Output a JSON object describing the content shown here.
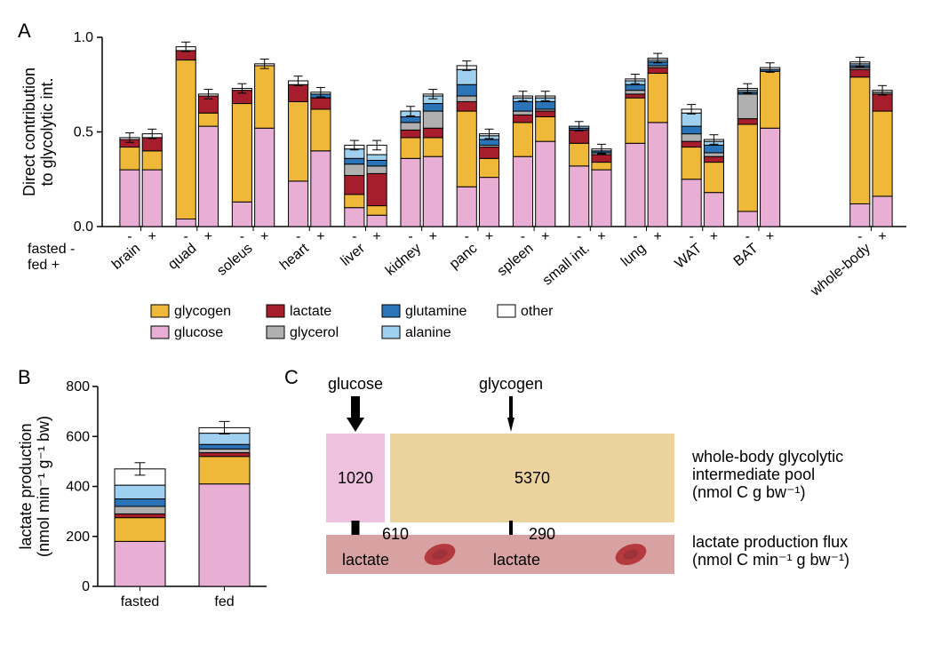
{
  "colors": {
    "glycogen": "#f0b838",
    "glucose": "#e8aed4",
    "lactate": "#a61e2c",
    "glycerol": "#b0b0b0",
    "glutamine": "#2b74b8",
    "alanine": "#9fd0ef",
    "other": "#ffffff",
    "axis": "#000000",
    "text": "#000000",
    "poolGlucose": "#eec2de",
    "poolGlycogen": "#ecd29d",
    "blood": "#d7a2a1",
    "bloodCell": "#b43a3f"
  },
  "legend": {
    "order": [
      "glycogen",
      "lactate",
      "glutamine",
      "other",
      "glucose",
      "glycerol",
      "alanine"
    ],
    "labels": {
      "glycogen": "glycogen",
      "lactate": "lactate",
      "glutamine": "glutamine",
      "other": "other",
      "glucose": "glucose",
      "glycerol": "glycerol",
      "alanine": "alanine"
    }
  },
  "stackOrder": [
    "glucose",
    "glycogen",
    "lactate",
    "glycerol",
    "glutamine",
    "alanine",
    "other"
  ],
  "panelA": {
    "label": "A",
    "ylabel": "Direct contribution\nto glycolytic int.",
    "ylim": [
      0,
      1.0
    ],
    "yticks": [
      0.0,
      0.5,
      1.0
    ],
    "fasted_fed_label": "fasted -\nfed +",
    "label_fontsize": 18,
    "tick_fontsize": 16,
    "tissues": [
      "brain",
      "quad",
      "soleus",
      "heart",
      "liver",
      "kidney",
      "panc",
      "spleen",
      "small int.",
      "lung",
      "WAT",
      "BAT",
      "whole-body"
    ],
    "data": {
      "brain": {
        "fasted": {
          "glucose": 0.3,
          "glycogen": 0.12,
          "lactate": 0.04,
          "glycerol": 0.0,
          "glutamine": 0.0,
          "alanine": 0.0,
          "other": 0.01
        },
        "fed": {
          "glucose": 0.3,
          "glycogen": 0.1,
          "lactate": 0.07,
          "glycerol": 0.0,
          "glutamine": 0.0,
          "alanine": 0.0,
          "other": 0.02
        }
      },
      "quad": {
        "fasted": {
          "glucose": 0.04,
          "glycogen": 0.84,
          "lactate": 0.05,
          "glycerol": 0.0,
          "glutamine": 0.0,
          "alanine": 0.0,
          "other": 0.02
        },
        "fed": {
          "glucose": 0.53,
          "glycogen": 0.07,
          "lactate": 0.09,
          "glycerol": 0.0,
          "glutamine": 0.0,
          "alanine": 0.0,
          "other": 0.01
        }
      },
      "soleus": {
        "fasted": {
          "glucose": 0.13,
          "glycogen": 0.52,
          "lactate": 0.07,
          "glycerol": 0.0,
          "glutamine": 0.0,
          "alanine": 0.0,
          "other": 0.01
        },
        "fed": {
          "glucose": 0.52,
          "glycogen": 0.33,
          "lactate": 0.0,
          "glycerol": 0.0,
          "glutamine": 0.0,
          "alanine": 0.0,
          "other": 0.01
        }
      },
      "heart": {
        "fasted": {
          "glucose": 0.24,
          "glycogen": 0.42,
          "lactate": 0.09,
          "glycerol": 0.0,
          "glutamine": 0.0,
          "alanine": 0.0,
          "other": 0.02
        },
        "fed": {
          "glucose": 0.4,
          "glycogen": 0.22,
          "lactate": 0.06,
          "glycerol": 0.0,
          "glutamine": 0.02,
          "alanine": 0.0,
          "other": 0.01
        }
      },
      "liver": {
        "fasted": {
          "glucose": 0.1,
          "glycogen": 0.07,
          "lactate": 0.1,
          "glycerol": 0.06,
          "glutamine": 0.03,
          "alanine": 0.05,
          "other": 0.02
        },
        "fed": {
          "glucose": 0.06,
          "glycogen": 0.05,
          "lactate": 0.17,
          "glycerol": 0.04,
          "glutamine": 0.03,
          "alanine": 0.03,
          "other": 0.05
        }
      },
      "kidney": {
        "fasted": {
          "glucose": 0.36,
          "glycogen": 0.11,
          "lactate": 0.04,
          "glycerol": 0.04,
          "glutamine": 0.03,
          "alanine": 0.03,
          "other": 0.0
        },
        "fed": {
          "glucose": 0.37,
          "glycogen": 0.1,
          "lactate": 0.05,
          "glycerol": 0.09,
          "glutamine": 0.04,
          "alanine": 0.04,
          "other": 0.01
        }
      },
      "panc": {
        "fasted": {
          "glucose": 0.21,
          "glycogen": 0.4,
          "lactate": 0.05,
          "glycerol": 0.03,
          "glutamine": 0.06,
          "alanine": 0.08,
          "other": 0.02
        },
        "fed": {
          "glucose": 0.26,
          "glycogen": 0.1,
          "lactate": 0.06,
          "glycerol": 0.01,
          "glutamine": 0.03,
          "alanine": 0.02,
          "other": 0.01
        }
      },
      "spleen": {
        "fasted": {
          "glucose": 0.37,
          "glycogen": 0.18,
          "lactate": 0.04,
          "glycerol": 0.02,
          "glutamine": 0.05,
          "alanine": 0.02,
          "other": 0.01
        },
        "fed": {
          "glucose": 0.45,
          "glycogen": 0.13,
          "lactate": 0.03,
          "glycerol": 0.01,
          "glutamine": 0.04,
          "alanine": 0.02,
          "other": 0.01
        }
      },
      "small int.": {
        "fasted": {
          "glucose": 0.32,
          "glycogen": 0.12,
          "lactate": 0.07,
          "glycerol": 0.0,
          "glutamine": 0.01,
          "alanine": 0.01,
          "other": 0.0
        },
        "fed": {
          "glucose": 0.3,
          "glycogen": 0.04,
          "lactate": 0.04,
          "glycerol": 0.01,
          "glutamine": 0.01,
          "alanine": 0.0,
          "other": 0.01
        }
      },
      "lung": {
        "fasted": {
          "glucose": 0.44,
          "glycogen": 0.24,
          "lactate": 0.02,
          "glycerol": 0.02,
          "glutamine": 0.03,
          "alanine": 0.02,
          "other": 0.01
        },
        "fed": {
          "glucose": 0.55,
          "glycogen": 0.26,
          "lactate": 0.03,
          "glycerol": 0.01,
          "glutamine": 0.02,
          "alanine": 0.01,
          "other": 0.01
        }
      },
      "WAT": {
        "fasted": {
          "glucose": 0.25,
          "glycogen": 0.17,
          "lactate": 0.03,
          "glycerol": 0.04,
          "glutamine": 0.04,
          "alanine": 0.07,
          "other": 0.02
        },
        "fed": {
          "glucose": 0.18,
          "glycogen": 0.16,
          "lactate": 0.03,
          "glycerol": 0.02,
          "glutamine": 0.04,
          "alanine": 0.02,
          "other": 0.01
        }
      },
      "BAT": {
        "fasted": {
          "glucose": 0.08,
          "glycogen": 0.46,
          "lactate": 0.03,
          "glycerol": 0.13,
          "glutamine": 0.01,
          "alanine": 0.01,
          "other": 0.01
        },
        "fed": {
          "glucose": 0.52,
          "glycogen": 0.3,
          "lactate": 0.0,
          "glycerol": 0.0,
          "glutamine": 0.01,
          "alanine": 0.0,
          "other": 0.01
        }
      },
      "whole-body": {
        "fasted": {
          "glucose": 0.12,
          "glycogen": 0.67,
          "lactate": 0.04,
          "glycerol": 0.01,
          "glutamine": 0.01,
          "alanine": 0.01,
          "other": 0.01
        },
        "fed": {
          "glucose": 0.16,
          "glycogen": 0.45,
          "lactate": 0.09,
          "glycerol": 0.01,
          "glutamine": 0.0,
          "alanine": 0.0,
          "other": 0.01
        }
      }
    },
    "err": 0.025,
    "bar_width": 0.7,
    "whole_body_gap": 1.0
  },
  "panelB": {
    "label": "B",
    "ylabel": "lactate production\n(nmol min⁻¹ g⁻¹ bw)",
    "ylim": [
      0,
      800
    ],
    "yticks": [
      0,
      200,
      400,
      600,
      800
    ],
    "categories": [
      "fasted",
      "fed"
    ],
    "data": {
      "fasted": {
        "glucose": 180,
        "glycogen": 95,
        "lactate": 15,
        "glycerol": 30,
        "glutamine": 30,
        "alanine": 55,
        "other": 65
      },
      "fed": {
        "glucose": 410,
        "glycogen": 110,
        "lactate": 15,
        "glycerol": 15,
        "glutamine": 18,
        "alanine": 45,
        "other": 22
      }
    },
    "err": 25,
    "label_fontsize": 18,
    "tick_fontsize": 16,
    "bar_width": 0.6
  },
  "panelC": {
    "label": "C",
    "top": {
      "glucose": "glucose",
      "glycogen": "glycogen"
    },
    "pool": {
      "glucose": 1020,
      "glycogen": 5370
    },
    "flux": {
      "glucose": 610,
      "glycogen": 290
    },
    "captions": {
      "pool": "whole-body glycolytic\nintermediate pool\n(nmol C g bw⁻¹)",
      "flux": "lactate production flux\n(nmol C min⁻¹ g bw⁻¹)",
      "lactate": "lactate"
    },
    "label_fontsize": 18
  }
}
